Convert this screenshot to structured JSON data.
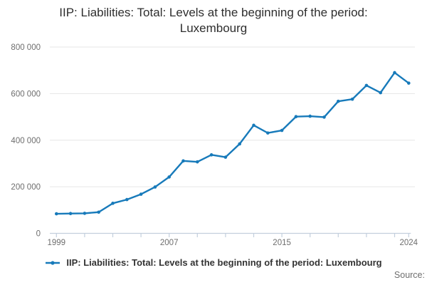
{
  "title": {
    "line1": "IIP: Liabilities: Total: Levels at the beginning of the period:",
    "line2": "Luxembourg"
  },
  "legend": {
    "label": "IIP: Liabilities: Total: Levels at the beginning of the period: Luxembourg"
  },
  "footer": {
    "source_label": "Source:"
  },
  "colors": {
    "line": "#177aba",
    "grid": "#e6e6e6",
    "axis": "#c3cfdd",
    "tick_label": "#6e6e6e",
    "title_text": "#2e2e2e"
  },
  "chart_data": {
    "type": "line",
    "title": "IIP: Liabilities: Total: Levels at the beginning of the period: Luxembourg",
    "xlabel": "",
    "ylabel": "",
    "x": [
      1999,
      2000,
      2001,
      2002,
      2003,
      2004,
      2005,
      2006,
      2007,
      2008,
      2009,
      2010,
      2011,
      2012,
      2013,
      2014,
      2015,
      2016,
      2017,
      2018,
      2019,
      2020,
      2021,
      2022,
      2023,
      2024
    ],
    "series": [
      {
        "name": "IIP: Liabilities: Total: Levels at the beginning of the period: Luxembourg",
        "values": [
          84000,
          85000,
          86000,
          91000,
          129000,
          145000,
          168000,
          199000,
          242000,
          311000,
          307000,
          337000,
          327000,
          384000,
          464000,
          431000,
          442000,
          501000,
          503000,
          499000,
          567000,
          576000,
          635000,
          604000,
          690000,
          645000
        ]
      }
    ],
    "ylim": [
      0,
      800000
    ],
    "yticks": [
      0,
      200000,
      400000,
      600000,
      800000
    ],
    "ytick_labels": [
      "0",
      "200 000",
      "400 000",
      "600 000",
      "800 000"
    ],
    "xtick_labels_shown": [
      "1999",
      "2007",
      "2015",
      "2024"
    ],
    "xtick_interval_years": 2,
    "grid": "horizontal",
    "legend_position": "bottom",
    "marker": "dot"
  }
}
